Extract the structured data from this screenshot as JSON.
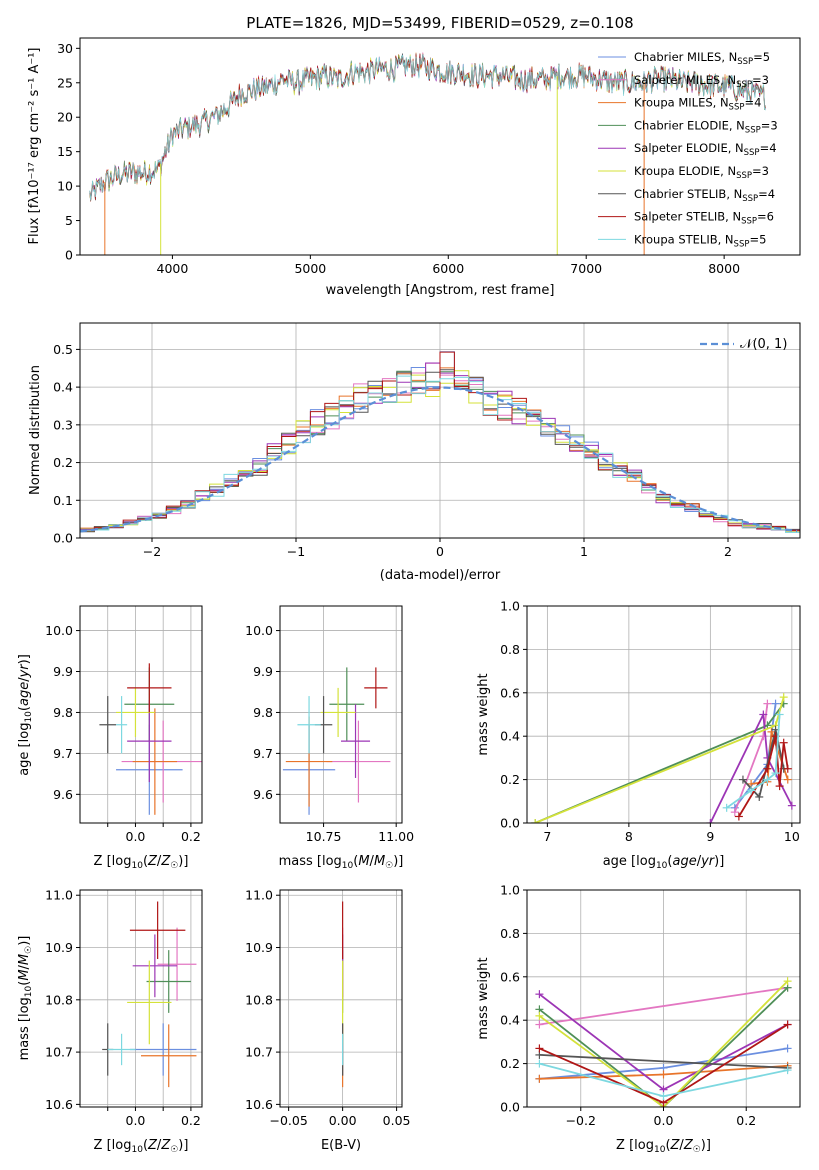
{
  "figure": {
    "title": "PLATE=1826, MJD=53499, FIBERID=0529, z=0.108"
  },
  "chart_data": [
    {
      "id": "spectrum",
      "type": "line",
      "xlabel": "wavelength [Angstrom, rest frame]",
      "ylabel": "Flux [f_λ10^-17 erg cm^-2 s^-1 A^-1]",
      "xlim": [
        3330,
        8550
      ],
      "ylim": [
        0,
        31.5
      ],
      "xticks": [
        4000,
        5000,
        6000,
        7000,
        8000
      ],
      "yticks": [
        0,
        5,
        10,
        15,
        20,
        25,
        30
      ],
      "grid": false,
      "legend_position": "top-right",
      "envelope_x": [
        3400,
        3500,
        3600,
        3700,
        3800,
        3900,
        4000,
        4100,
        4200,
        4300,
        4400,
        4500,
        4600,
        4700,
        4800,
        4900,
        5000,
        5100,
        5200,
        5300,
        5400,
        5500,
        5600,
        5700,
        5800,
        5900,
        6000,
        6100,
        6200,
        6300,
        6400,
        6500,
        6600,
        6700,
        6800,
        6900,
        7000,
        7100,
        7200,
        7300,
        7400,
        7500,
        7600,
        7700,
        7800,
        7900,
        8000,
        8100,
        8200,
        8300
      ],
      "envelope_y": [
        8.5,
        10.5,
        11.5,
        12.0,
        12.0,
        12.5,
        17.5,
        18.5,
        19.0,
        20.0,
        21.5,
        23.5,
        24.0,
        24.5,
        25.5,
        25.0,
        25.5,
        26.0,
        25.5,
        26.5,
        26.5,
        27.0,
        27.0,
        27.5,
        27.5,
        27.0,
        26.5,
        26.5,
        26.0,
        26.0,
        26.0,
        25.5,
        25.5,
        25.5,
        26.0,
        26.0,
        26.0,
        25.5,
        25.0,
        25.0,
        25.0,
        25.5,
        25.5,
        25.0,
        25.0,
        24.5,
        24.5,
        24.0,
        23.5,
        23.0
      ],
      "series": [
        {
          "name": "Chabrier MILES, N_SSP=5",
          "color": "#6b8fe0"
        },
        {
          "name": "Salpeter MILES, N_SSP=3",
          "color": "#e377c2"
        },
        {
          "name": "Kroupa MILES, N_SSP=4",
          "color": "#e8742a"
        },
        {
          "name": "Chabrier ELODIE, N_SSP=3",
          "color": "#4f8f58"
        },
        {
          "name": "Salpeter ELODIE, N_SSP=4",
          "color": "#9c35b5"
        },
        {
          "name": "Kroupa ELODIE, N_SSP=3",
          "color": "#d4e23a"
        },
        {
          "name": "Chabrier STELIB, N_SSP=4",
          "color": "#555555"
        },
        {
          "name": "Salpeter STELIB, N_SSP=6",
          "color": "#b01616"
        },
        {
          "name": "Kroupa STELIB, N_SSP=5",
          "color": "#7dd8e0"
        }
      ],
      "legend_labels": [
        {
          "base": "Chabrier MILES, N",
          "sub": "SSP",
          "tail": "=5"
        },
        {
          "base": "Salpeter MILES, N",
          "sub": "SSP",
          "tail": "=3"
        },
        {
          "base": "Kroupa MILES, N",
          "sub": "SSP",
          "tail": "=4"
        },
        {
          "base": "Chabrier ELODIE, N",
          "sub": "SSP",
          "tail": "=3"
        },
        {
          "base": "Salpeter ELODIE, N",
          "sub": "SSP",
          "tail": "=4"
        },
        {
          "base": "Kroupa ELODIE, N",
          "sub": "SSP",
          "tail": "=3"
        },
        {
          "base": "Chabrier STELIB, N",
          "sub": "SSP",
          "tail": "=4"
        },
        {
          "base": "Salpeter STELIB, N",
          "sub": "SSP",
          "tail": "=6"
        },
        {
          "base": "Kroupa STELIB, N",
          "sub": "SSP",
          "tail": "=5"
        }
      ]
    },
    {
      "id": "residuals",
      "type": "line",
      "xlabel": "(data-model)/error",
      "ylabel": "Normed distribution",
      "xlim": [
        -2.5,
        2.5
      ],
      "ylim": [
        0,
        0.57
      ],
      "xticks": [
        -2,
        -1,
        0,
        1,
        2
      ],
      "yticks": [
        0.0,
        0.1,
        0.2,
        0.3,
        0.4,
        0.5
      ],
      "grid": true,
      "legend_position": "top-right",
      "reference_label": "𝒩(0, 1)",
      "reference_color": "#5b8fd6",
      "bin_centers": [
        -2.45,
        -2.35,
        -2.25,
        -2.15,
        -2.05,
        -1.95,
        -1.85,
        -1.75,
        -1.65,
        -1.55,
        -1.45,
        -1.35,
        -1.25,
        -1.15,
        -1.05,
        -0.95,
        -0.85,
        -0.75,
        -0.65,
        -0.55,
        -0.45,
        -0.35,
        -0.25,
        -0.15,
        -0.05,
        0.05,
        0.15,
        0.25,
        0.35,
        0.45,
        0.55,
        0.65,
        0.75,
        0.85,
        0.95,
        1.05,
        1.15,
        1.25,
        1.35,
        1.45,
        1.55,
        1.65,
        1.75,
        1.85,
        1.95,
        2.05,
        2.15,
        2.25,
        2.35,
        2.45
      ],
      "hist_base": [
        0.02,
        0.025,
        0.03,
        0.04,
        0.05,
        0.06,
        0.075,
        0.09,
        0.11,
        0.13,
        0.15,
        0.17,
        0.19,
        0.22,
        0.25,
        0.28,
        0.31,
        0.33,
        0.35,
        0.37,
        0.38,
        0.39,
        0.4,
        0.41,
        0.42,
        0.45,
        0.42,
        0.39,
        0.36,
        0.35,
        0.33,
        0.31,
        0.29,
        0.27,
        0.25,
        0.23,
        0.2,
        0.18,
        0.16,
        0.13,
        0.11,
        0.09,
        0.08,
        0.06,
        0.05,
        0.04,
        0.035,
        0.03,
        0.025,
        0.02
      ]
    },
    {
      "id": "age-vs-Z",
      "type": "scatter",
      "xlabel": "Z [log10(Z/Z☉)]",
      "ylabel": "age [log10(age/yr)]",
      "xlim": [
        -0.2,
        0.24
      ],
      "ylim": [
        9.53,
        10.06
      ],
      "xticks": [
        -0.1,
        0.0,
        0.1,
        0.2
      ],
      "xticklabels": [
        "",
        "0.0",
        "",
        "0.2"
      ],
      "yticks": [
        9.6,
        9.7,
        9.8,
        9.9,
        10.0
      ],
      "grid": true,
      "points": [
        {
          "x": 0.05,
          "y": 9.66,
          "xerr": 0.12,
          "yerr": 0.11,
          "series": 0
        },
        {
          "x": 0.1,
          "y": 9.68,
          "xerr": 0.15,
          "yerr": 0.1,
          "series": 1
        },
        {
          "x": 0.07,
          "y": 9.68,
          "xerr": 0.08,
          "yerr": 0.13,
          "series": 2
        },
        {
          "x": 0.05,
          "y": 9.82,
          "xerr": 0.09,
          "yerr": 0.09,
          "series": 3
        },
        {
          "x": 0.05,
          "y": 9.73,
          "xerr": 0.08,
          "yerr": 0.1,
          "series": 4
        },
        {
          "x": 0.0,
          "y": 9.8,
          "xerr": 0.07,
          "yerr": 0.06,
          "series": 5
        },
        {
          "x": -0.1,
          "y": 9.77,
          "xerr": 0.03,
          "yerr": 0.07,
          "series": 6
        },
        {
          "x": 0.05,
          "y": 9.86,
          "xerr": 0.08,
          "yerr": 0.06,
          "series": 7
        },
        {
          "x": -0.05,
          "y": 9.77,
          "xerr": 0.02,
          "yerr": 0.07,
          "series": 8
        }
      ]
    },
    {
      "id": "age-vs-mass",
      "type": "scatter",
      "xlabel": "mass [log10(M/M☉)]",
      "ylabel": "",
      "xlim": [
        10.6,
        11.02
      ],
      "ylim": [
        9.53,
        10.06
      ],
      "xticks": [
        10.75,
        11.0
      ],
      "xticklabels": [
        "10.75",
        "11.00"
      ],
      "yticks": [
        9.6,
        9.7,
        9.8,
        9.9,
        10.0
      ],
      "grid": true,
      "points": [
        {
          "x": 10.7,
          "y": 9.66,
          "xerr": 0.09,
          "yerr": 0.11,
          "series": 0
        },
        {
          "x": 10.87,
          "y": 9.68,
          "xerr": 0.11,
          "yerr": 0.1,
          "series": 1
        },
        {
          "x": 10.7,
          "y": 9.68,
          "xerr": 0.08,
          "yerr": 0.11,
          "series": 2
        },
        {
          "x": 10.83,
          "y": 9.82,
          "xerr": 0.06,
          "yerr": 0.09,
          "series": 3
        },
        {
          "x": 10.86,
          "y": 9.73,
          "xerr": 0.05,
          "yerr": 0.09,
          "series": 4
        },
        {
          "x": 10.8,
          "y": 9.8,
          "xerr": 0.06,
          "yerr": 0.06,
          "series": 5
        },
        {
          "x": 10.75,
          "y": 9.77,
          "xerr": 0.03,
          "yerr": 0.07,
          "series": 6
        },
        {
          "x": 10.93,
          "y": 9.86,
          "xerr": 0.04,
          "yerr": 0.05,
          "series": 7
        },
        {
          "x": 10.7,
          "y": 9.77,
          "xerr": 0.04,
          "yerr": 0.07,
          "series": 8
        }
      ]
    },
    {
      "id": "massweight-vs-age",
      "type": "line",
      "xlabel": "age [log10(age/yr)]",
      "ylabel": "mass weight",
      "xlim": [
        6.75,
        10.1
      ],
      "ylim": [
        0,
        1.0
      ],
      "xticks": [
        7,
        8,
        9,
        10
      ],
      "yticks": [
        0.0,
        0.2,
        0.4,
        0.6,
        0.8,
        1.0
      ],
      "grid": true,
      "series": [
        {
          "series": 0,
          "x": [
            9.3,
            9.7,
            9.8
          ],
          "y": [
            0.07,
            0.27,
            0.55
          ]
        },
        {
          "series": 1,
          "x": [
            9.3,
            9.65,
            9.7
          ],
          "y": [
            0.05,
            0.4,
            0.55
          ]
        },
        {
          "series": 2,
          "x": [
            9.5,
            9.7,
            9.75,
            9.95
          ],
          "y": [
            0.18,
            0.19,
            0.42,
            0.2
          ]
        },
        {
          "series": 3,
          "x": [
            6.85,
            9.7,
            9.9
          ],
          "y": [
            0.0,
            0.45,
            0.55
          ]
        },
        {
          "series": 4,
          "x": [
            9.0,
            9.65,
            9.7,
            10.0
          ],
          "y": [
            0.0,
            0.5,
            0.3,
            0.08
          ]
        },
        {
          "series": 5,
          "x": [
            6.85,
            9.8,
            9.9
          ],
          "y": [
            0.0,
            0.45,
            0.58
          ]
        },
        {
          "series": 6,
          "x": [
            9.4,
            9.6,
            9.8,
            9.9
          ],
          "y": [
            0.2,
            0.12,
            0.43,
            0.25
          ]
        },
        {
          "series": 7,
          "x": [
            9.35,
            9.7,
            9.8,
            9.85,
            9.9,
            9.95
          ],
          "y": [
            0.03,
            0.25,
            0.4,
            0.17,
            0.37,
            0.25
          ]
        },
        {
          "series": 8,
          "x": [
            9.2,
            9.5,
            9.7,
            9.8,
            9.85
          ],
          "y": [
            0.07,
            0.15,
            0.2,
            0.23,
            0.5
          ]
        }
      ]
    },
    {
      "id": "mass-vs-Z",
      "type": "scatter",
      "xlabel": "Z [log10(Z/Z☉)]",
      "ylabel": "mass [log10(M/M☉)]",
      "xlim": [
        -0.2,
        0.24
      ],
      "ylim": [
        10.595,
        11.01
      ],
      "xticks": [
        -0.1,
        0.0,
        0.1,
        0.2
      ],
      "xticklabels": [
        "",
        "0.0",
        "",
        "0.2"
      ],
      "yticks": [
        10.6,
        10.7,
        10.8,
        10.9,
        11.0
      ],
      "grid": true,
      "points": [
        {
          "x": 0.1,
          "y": 10.705,
          "xerr": 0.12,
          "yerr": 0.05,
          "series": 0
        },
        {
          "x": 0.15,
          "y": 10.868,
          "xerr": 0.07,
          "yerr": 0.07,
          "series": 1
        },
        {
          "x": 0.12,
          "y": 10.693,
          "xerr": 0.1,
          "yerr": 0.06,
          "series": 2
        },
        {
          "x": 0.12,
          "y": 10.835,
          "xerr": 0.08,
          "yerr": 0.06,
          "series": 3
        },
        {
          "x": 0.07,
          "y": 10.865,
          "xerr": 0.08,
          "yerr": 0.06,
          "series": 4
        },
        {
          "x": 0.05,
          "y": 10.795,
          "xerr": 0.08,
          "yerr": 0.08,
          "series": 5
        },
        {
          "x": -0.1,
          "y": 10.705,
          "xerr": 0.02,
          "yerr": 0.05,
          "series": 6
        },
        {
          "x": 0.08,
          "y": 10.933,
          "xerr": 0.1,
          "yerr": 0.055,
          "series": 7
        },
        {
          "x": -0.05,
          "y": 10.705,
          "xerr": 0.05,
          "yerr": 0.03,
          "series": 8
        }
      ]
    },
    {
      "id": "mass-vs-ebv",
      "type": "scatter",
      "xlabel": "E(B-V)",
      "ylabel": "",
      "xlim": [
        -0.058,
        0.055
      ],
      "ylim": [
        10.595,
        11.01
      ],
      "xticks": [
        -0.05,
        0.0,
        0.05
      ],
      "xticklabels": [
        "−0.05",
        "0.00",
        "0.05"
      ],
      "yticks": [
        10.6,
        10.7,
        10.8,
        10.9,
        11.0
      ],
      "grid": true,
      "points": [
        {
          "x": 0.0,
          "y": 10.705,
          "xerr": 0,
          "yerr": 0.05,
          "series": 0
        },
        {
          "x": 0.0,
          "y": 10.868,
          "xerr": 0,
          "yerr": 0.07,
          "series": 1
        },
        {
          "x": 0.0,
          "y": 10.693,
          "xerr": 0,
          "yerr": 0.06,
          "series": 2
        },
        {
          "x": 0.0,
          "y": 10.835,
          "xerr": 0,
          "yerr": 0.06,
          "series": 3
        },
        {
          "x": 0.0,
          "y": 10.865,
          "xerr": 0,
          "yerr": 0.06,
          "series": 4
        },
        {
          "x": 0.0,
          "y": 10.795,
          "xerr": 0,
          "yerr": 0.08,
          "series": 5
        },
        {
          "x": 0.0,
          "y": 10.705,
          "xerr": 0,
          "yerr": 0.05,
          "series": 6
        },
        {
          "x": 0.0,
          "y": 10.933,
          "xerr": 0,
          "yerr": 0.055,
          "series": 7
        },
        {
          "x": 0.0,
          "y": 10.705,
          "xerr": 0,
          "yerr": 0.03,
          "series": 8
        }
      ]
    },
    {
      "id": "massweight-vs-Z",
      "type": "line",
      "xlabel": "Z [log10(Z/Z☉)]",
      "ylabel": "mass weight",
      "xlim": [
        -0.33,
        0.33
      ],
      "ylim": [
        0,
        1.0
      ],
      "xticks": [
        -0.2,
        0.0,
        0.2
      ],
      "xticklabels": [
        "−0.2",
        "0.0",
        "0.2"
      ],
      "yticks": [
        0.0,
        0.2,
        0.4,
        0.6,
        0.8,
        1.0
      ],
      "grid": true,
      "series": [
        {
          "series": 0,
          "x": [
            -0.3,
            0.0,
            0.3
          ],
          "y": [
            0.13,
            0.18,
            0.27
          ]
        },
        {
          "series": 1,
          "x": [
            -0.3,
            0.3
          ],
          "y": [
            0.38,
            0.55
          ]
        },
        {
          "series": 2,
          "x": [
            -0.3,
            0.0,
            0.3
          ],
          "y": [
            0.13,
            0.15,
            0.19
          ]
        },
        {
          "series": 3,
          "x": [
            -0.3,
            0.0,
            0.3
          ],
          "y": [
            0.45,
            0.0,
            0.55
          ]
        },
        {
          "series": 4,
          "x": [
            -0.3,
            0.0,
            0.3
          ],
          "y": [
            0.52,
            0.08,
            0.38
          ]
        },
        {
          "series": 5,
          "x": [
            -0.3,
            0.0,
            0.3
          ],
          "y": [
            0.42,
            0.0,
            0.58
          ]
        },
        {
          "series": 6,
          "x": [
            -0.3,
            0.3
          ],
          "y": [
            0.24,
            0.18
          ]
        },
        {
          "series": 7,
          "x": [
            -0.3,
            0.0,
            0.3
          ],
          "y": [
            0.27,
            0.02,
            0.38
          ]
        },
        {
          "series": 8,
          "x": [
            -0.3,
            0.0,
            0.3
          ],
          "y": [
            0.2,
            0.05,
            0.17
          ]
        }
      ]
    }
  ]
}
